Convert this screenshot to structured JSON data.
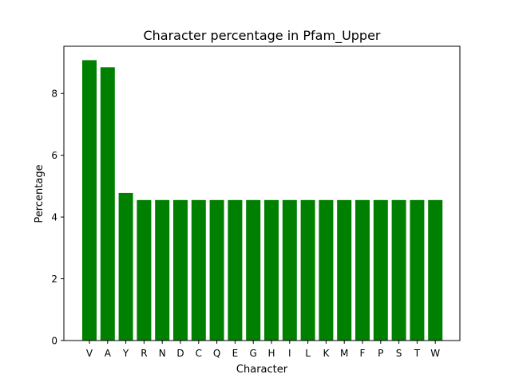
{
  "chart_data": {
    "type": "bar",
    "title": "Character percentage in Pfam_Upper",
    "xlabel": "Character",
    "ylabel": "Percentage",
    "categories": [
      "V",
      "A",
      "Y",
      "R",
      "N",
      "D",
      "C",
      "Q",
      "E",
      "G",
      "H",
      "I",
      "L",
      "K",
      "M",
      "F",
      "P",
      "S",
      "T",
      "W"
    ],
    "values": [
      9.08,
      8.85,
      4.78,
      4.55,
      4.55,
      4.55,
      4.55,
      4.55,
      4.55,
      4.55,
      4.55,
      4.55,
      4.55,
      4.55,
      4.55,
      4.55,
      4.55,
      4.55,
      4.55,
      4.55
    ],
    "ylim": [
      0,
      9.53
    ],
    "yticks": [
      0,
      2,
      4,
      6,
      8
    ],
    "grid": false,
    "legend": false,
    "colors": {
      "bar": "#008000",
      "axis": "#000000",
      "background": "#ffffff"
    }
  }
}
